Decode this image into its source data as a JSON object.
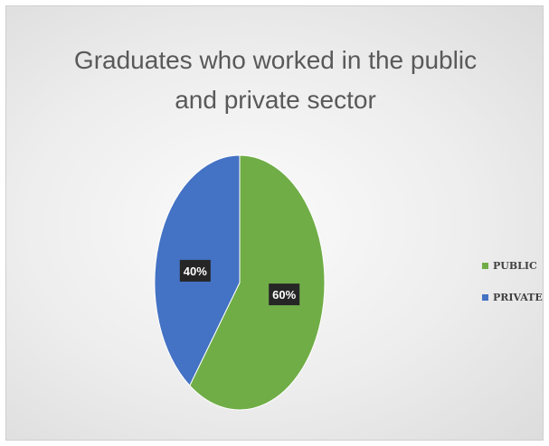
{
  "chart_data": {
    "type": "pie",
    "title_lines": [
      "Graduates who worked in the public",
      "and private sector"
    ],
    "categories": [
      "PUBLIC",
      "PRIVATE"
    ],
    "values": [
      60,
      40
    ],
    "data_labels": [
      "60%",
      "40%"
    ],
    "colors": [
      "#70ad47",
      "#4472c4"
    ],
    "legend_position": "right",
    "start_angle_deg": 0,
    "direction": "clockwise"
  }
}
